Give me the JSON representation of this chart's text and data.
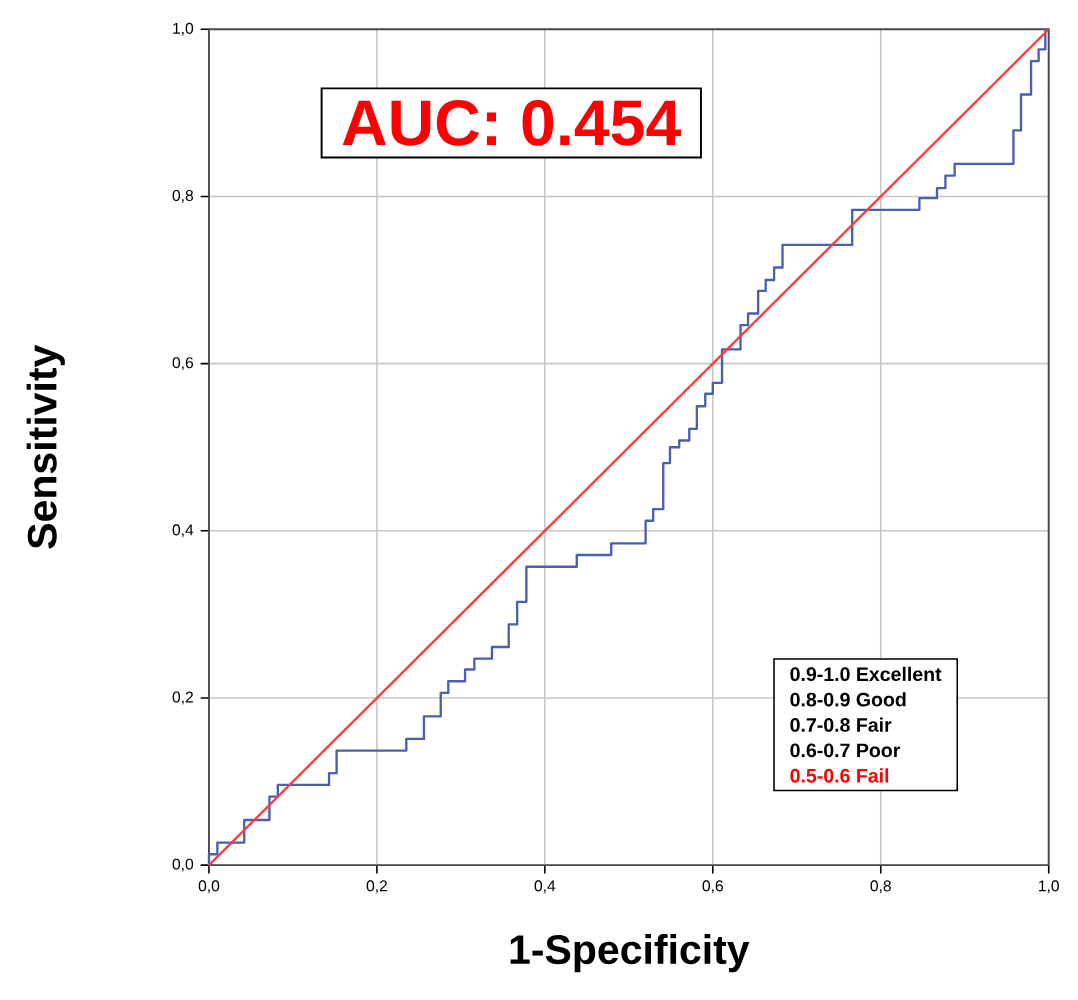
{
  "chart_data": {
    "type": "step",
    "xlabel": "1-Specificity",
    "ylabel": "Sensitivity",
    "xlim": [
      0,
      1
    ],
    "ylim": [
      0,
      1
    ],
    "xticks": [
      {
        "value": 0,
        "label": "0,0"
      },
      {
        "value": 0.2,
        "label": "0,2"
      },
      {
        "value": 0.4,
        "label": "0,4"
      },
      {
        "value": 0.6,
        "label": "0,6"
      },
      {
        "value": 0.8,
        "label": "0,8"
      },
      {
        "value": 1,
        "label": "1,0"
      }
    ],
    "yticks": [
      {
        "value": 0,
        "label": "0,0"
      },
      {
        "value": 0.2,
        "label": "0,2"
      },
      {
        "value": 0.4,
        "label": "0,4"
      },
      {
        "value": 0.6,
        "label": "0,6"
      },
      {
        "value": 0.8,
        "label": "0,8"
      },
      {
        "value": 1,
        "label": "1,0"
      }
    ],
    "grid": true,
    "series": [
      {
        "color": "#4a5fb0",
        "x": [
          0,
          0,
          0.01,
          0.042,
          0.072,
          0.082,
          0.143,
          0.152,
          0.235,
          0.256,
          0.276,
          0.285,
          0.305,
          0.316,
          0.337,
          0.357,
          0.367,
          0.378,
          0.438,
          0.479,
          0.52,
          0.529,
          0.541,
          0.549,
          0.56,
          0.572,
          0.581,
          0.591,
          0.6,
          0.611,
          0.633,
          0.642,
          0.654,
          0.663,
          0.673,
          0.683,
          0.766,
          0.846,
          0.867,
          0.877,
          0.888,
          0.958,
          0.967,
          0.979,
          0.988,
          0.996,
          1.0
        ],
        "values": [
          0,
          0.013,
          0.027,
          0.054,
          0.082,
          0.096,
          0.11,
          0.137,
          0.151,
          0.178,
          0.206,
          0.22,
          0.234,
          0.247,
          0.261,
          0.288,
          0.315,
          0.357,
          0.371,
          0.385,
          0.412,
          0.426,
          0.481,
          0.5,
          0.508,
          0.522,
          0.549,
          0.564,
          0.577,
          0.617,
          0.646,
          0.66,
          0.687,
          0.7,
          0.715,
          0.742,
          0.784,
          0.798,
          0.81,
          0.825,
          0.839,
          0.879,
          0.922,
          0.962,
          0.976,
          1.0,
          1.0
        ]
      },
      {
        "type": "line",
        "color": "#ff3b3b",
        "x": [
          0,
          1
        ],
        "values": [
          0,
          1
        ]
      }
    ],
    "annotations": [
      "AUC: 0.454",
      "0.9-1.0  Excellent",
      "0.8-0.9 Good",
      "0.7-0.8 Fair",
      "0.6-0.7 Poor",
      "0.5-0.6 Fail"
    ]
  }
}
